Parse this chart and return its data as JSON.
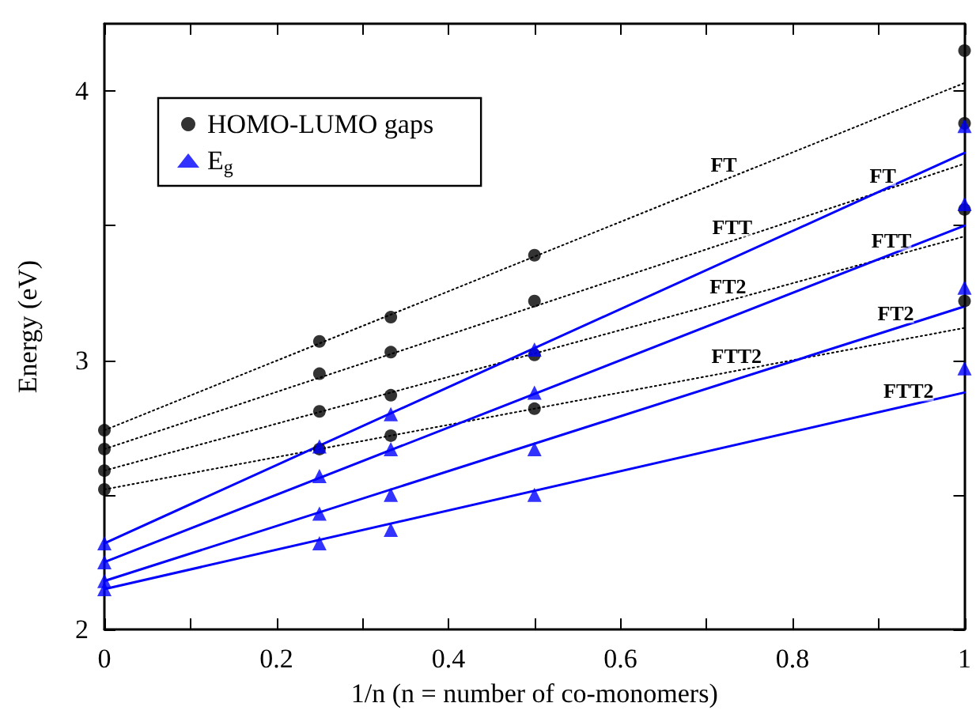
{
  "chart_data": {
    "type": "scatter",
    "xlabel": "1/n (n = number of co-monomers)",
    "ylabel": "Energy (eV)",
    "xlim": [
      0,
      1
    ],
    "xticks": [
      0,
      {
        "value": 0.1,
        "label": null
      },
      0.2,
      {
        "value": 0.3,
        "label": null
      },
      0.4,
      {
        "value": 0.5,
        "label": null
      },
      0.6,
      {
        "value": 0.7,
        "label": null
      },
      0.8,
      {
        "value": 0.9,
        "label": null
      },
      1
    ],
    "ylim": [
      2,
      4.25
    ],
    "yticks": [
      2,
      {
        "value": 2.5,
        "label": null
      },
      3,
      {
        "value": 3.5,
        "label": null
      },
      4
    ],
    "grid": false,
    "legend": "top left",
    "series": [
      {
        "name": "HOMO-LUMO gaps",
        "marker": "circle",
        "color": "#000000",
        "x": [
          0,
          0,
          0,
          0,
          0.25,
          0.25,
          0.25,
          0.25,
          0.333,
          0.333,
          0.333,
          0.333,
          0.5,
          0.5,
          0.5,
          0.5,
          1,
          1,
          1,
          1
        ],
        "values": [
          2.74,
          2.67,
          2.59,
          2.52,
          3.07,
          2.95,
          2.81,
          2.67,
          3.16,
          3.03,
          2.87,
          2.72,
          3.39,
          3.22,
          3.02,
          2.82,
          4.15,
          3.88,
          3.56,
          3.22
        ]
      },
      {
        "name": "E$_{g}$",
        "marker": "triangle",
        "color": "#0000ff",
        "x": [
          0,
          0,
          0,
          0,
          0.25,
          0.25,
          0.25,
          0.25,
          0.333,
          0.333,
          0.333,
          0.333,
          0.5,
          0.5,
          0.5,
          0.5,
          1,
          1,
          1,
          1
        ],
        "values": [
          2.32,
          2.25,
          2.18,
          2.15,
          2.68,
          2.57,
          2.43,
          2.32,
          2.8,
          2.67,
          2.5,
          2.37,
          3.04,
          2.88,
          2.67,
          2.5,
          3.87,
          3.58,
          3.27,
          2.97
        ]
      },
      {
        "type": "line",
        "marker": "none",
        "line_style": "dotted",
        "color": "#000000",
        "x": [
          0,
          1
        ],
        "values": [
          2.74,
          4.03
        ]
      },
      {
        "type": "line",
        "marker": "none",
        "line_style": "dotted",
        "color": "#000000",
        "x": [
          0,
          1
        ],
        "values": [
          2.67,
          3.73
        ]
      },
      {
        "type": "line",
        "marker": "none",
        "line_style": "dotted",
        "color": "#000000",
        "x": [
          0,
          1
        ],
        "values": [
          2.59,
          3.46
        ]
      },
      {
        "type": "line",
        "marker": "none",
        "line_style": "dotted",
        "color": "#000000",
        "x": [
          0,
          1
        ],
        "values": [
          2.52,
          3.12
        ]
      },
      {
        "type": "line",
        "marker": "none",
        "line_style": "solid",
        "color": "#0000ff",
        "x": [
          0,
          1
        ],
        "values": [
          2.32,
          3.77
        ]
      },
      {
        "type": "line",
        "marker": "none",
        "line_style": "solid",
        "color": "#0000ff",
        "x": [
          0,
          1
        ],
        "values": [
          2.25,
          3.5
        ]
      },
      {
        "type": "line",
        "marker": "none",
        "line_style": "solid",
        "color": "#0000ff",
        "x": [
          0,
          1
        ],
        "values": [
          2.18,
          3.2
        ]
      },
      {
        "type": "line",
        "marker": "none",
        "line_style": "solid",
        "color": "#0000ff",
        "x": [
          0,
          1
        ],
        "values": [
          2.15,
          2.88
        ]
      }
    ],
    "annotations": [
      {
        "text": "FT",
        "x": 0.72,
        "y": 3.67
      },
      {
        "text": "FTT",
        "x": 0.73,
        "y": 3.44
      },
      {
        "text": "FT2",
        "x": 0.725,
        "y": 3.22
      },
      {
        "text": "FTT2",
        "x": 0.735,
        "y": 2.96
      },
      {
        "text": "FT",
        "x": 0.905,
        "y": 3.63
      },
      {
        "text": "FTT",
        "x": 0.915,
        "y": 3.39
      },
      {
        "text": "FT2",
        "x": 0.92,
        "y": 3.12
      },
      {
        "text": "FTT2",
        "x": 0.935,
        "y": 2.83
      }
    ]
  }
}
